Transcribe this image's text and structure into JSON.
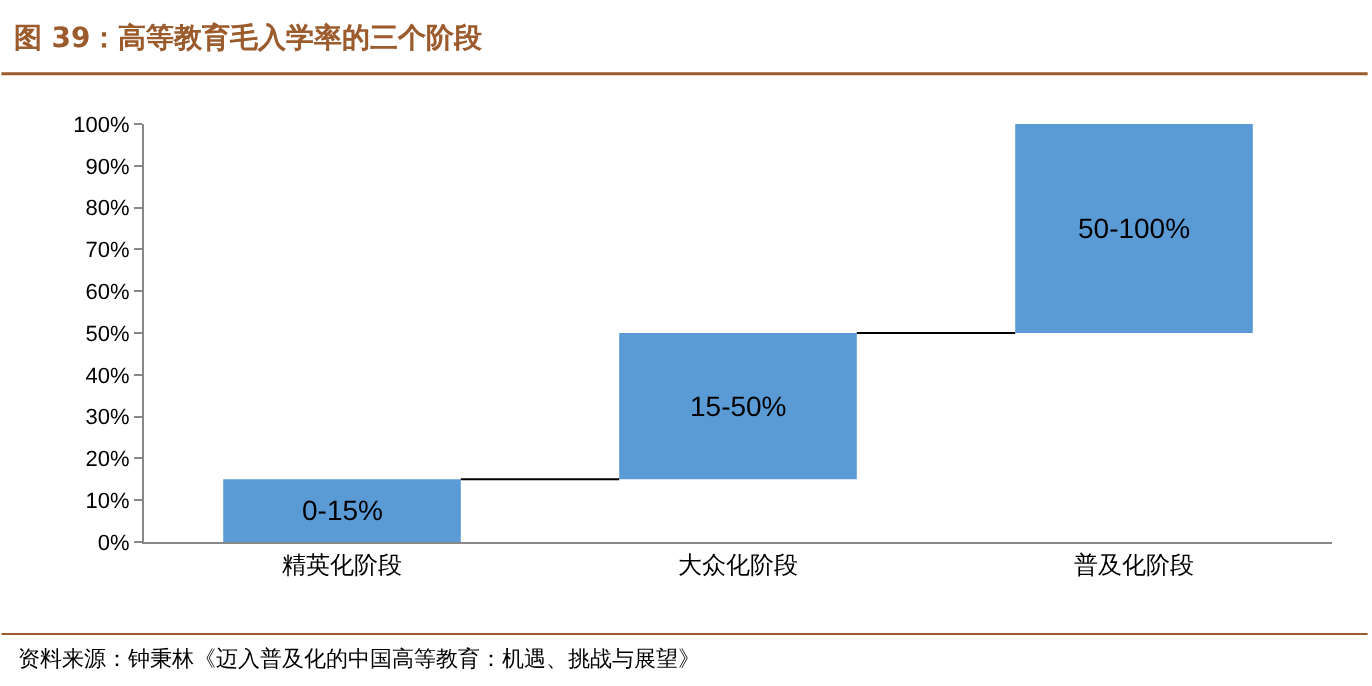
{
  "chart_data": {
    "type": "bar",
    "title": "图 39：高等教育毛入学率的三个阶段",
    "categories": [
      "精英化阶段",
      "大众化阶段",
      "普及化阶段"
    ],
    "base": [
      0,
      15,
      50
    ],
    "values": [
      15,
      35,
      50
    ],
    "color": "#5b9bd5",
    "ylim": [
      0,
      100
    ],
    "yticks": [
      {
        "value": 0,
        "label": "0%"
      },
      {
        "value": 10,
        "label": "10%"
      },
      {
        "value": 20,
        "label": "20%"
      },
      {
        "value": 30,
        "label": "30%"
      },
      {
        "value": 40,
        "label": "40%"
      },
      {
        "value": 50,
        "label": "50%"
      },
      {
        "value": 60,
        "label": "60%"
      },
      {
        "value": 70,
        "label": "70%"
      },
      {
        "value": 80,
        "label": "80%"
      },
      {
        "value": 90,
        "label": "90%"
      },
      {
        "value": 100,
        "label": "100%"
      }
    ],
    "grid": false,
    "annotations": [
      "0-15%",
      "15-50%",
      "50-100%",
      "资料来源：钟秉林《迈入普及化的中国高等教育：机遇、挑战与展望》"
    ]
  }
}
